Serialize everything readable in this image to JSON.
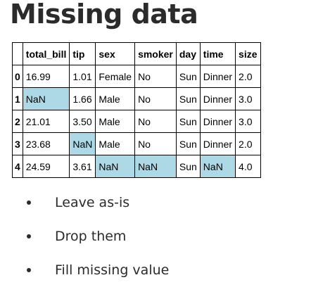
{
  "title": "Missing data",
  "table": {
    "columns": [
      "",
      "total_bill",
      "tip",
      "sex",
      "smoker",
      "day",
      "time",
      "size"
    ],
    "rows": [
      {
        "index": "0",
        "total_bill": "16.99",
        "tip": "1.01",
        "sex": "Female",
        "smoker": "No",
        "day": "Sun",
        "time": "Dinner",
        "size": "2.0"
      },
      {
        "index": "1",
        "total_bill": "NaN",
        "tip": "1.66",
        "sex": "Male",
        "smoker": "No",
        "day": "Sun",
        "time": "Dinner",
        "size": "3.0"
      },
      {
        "index": "2",
        "total_bill": "21.01",
        "tip": "3.50",
        "sex": "Male",
        "smoker": "No",
        "day": "Sun",
        "time": "Dinner",
        "size": "3.0"
      },
      {
        "index": "3",
        "total_bill": "23.68",
        "tip": "NaN",
        "sex": "Male",
        "smoker": "No",
        "day": "Sun",
        "time": "Dinner",
        "size": "2.0"
      },
      {
        "index": "4",
        "total_bill": "24.59",
        "tip": "3.61",
        "sex": "NaN",
        "smoker": "NaN",
        "day": "Sun",
        "time": "NaN",
        "size": "4.0"
      }
    ],
    "highlight_color": "#add8e6"
  },
  "bullets": [
    "Leave as-is",
    "Drop them",
    "Fill missing value"
  ]
}
